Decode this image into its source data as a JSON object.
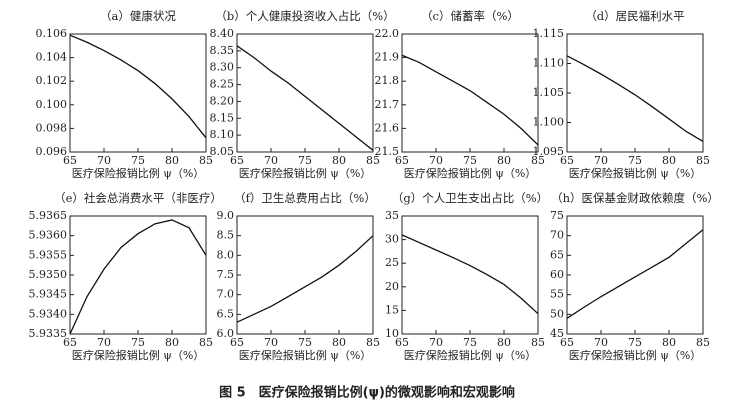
{
  "caption": "图 5　医疗保险报销比例(ψ)的微观影响和宏观影响",
  "chart_data": [
    {
      "type": "line",
      "title": "（a）健康状况",
      "x_label": "医疗保险报销比例 ψ（%）",
      "color": "#111111",
      "x": [
        65,
        67.5,
        70,
        72.5,
        75,
        77.5,
        80,
        82.5,
        85
      ],
      "values": [
        0.1059,
        0.1053,
        0.1046,
        0.1038,
        0.1029,
        0.1018,
        0.1005,
        0.099,
        0.0972
      ],
      "xlim": [
        65,
        85
      ],
      "xticks": [
        65,
        70,
        75,
        80,
        85
      ],
      "ylim": [
        0.096,
        0.106
      ],
      "yticks": [
        0.096,
        0.098,
        {
          "value": 0.1,
          "label": "0.100"
        },
        0.102,
        0.104,
        0.106
      ]
    },
    {
      "type": "line",
      "title": "（b）个人健康投资收入占比（%）",
      "x_label": "医疗保险报销比例 ψ（%）",
      "color": "#111111",
      "x": [
        65,
        67.5,
        70,
        72.5,
        75,
        77.5,
        80,
        82.5,
        85
      ],
      "values": [
        8.365,
        8.33,
        8.29,
        8.255,
        8.215,
        8.175,
        8.135,
        8.095,
        8.055
      ],
      "xlim": [
        65,
        85
      ],
      "xticks": [
        65,
        70,
        75,
        80,
        85
      ],
      "ylim": [
        8.05,
        8.4
      ],
      "yticks": [
        8.05,
        {
          "value": 8.1,
          "label": "8.10"
        },
        8.15,
        {
          "value": 8.2,
          "label": "8.20"
        },
        8.25,
        {
          "value": 8.3,
          "label": "8.30"
        },
        8.35,
        {
          "value": 8.4,
          "label": "8.40"
        }
      ]
    },
    {
      "type": "line",
      "title": "（c）储蓄率（%）",
      "x_label": "医疗保险报销比例 ψ（%）",
      "color": "#111111",
      "x": [
        65,
        67.5,
        70,
        72.5,
        75,
        77.5,
        80,
        82.5,
        85
      ],
      "values": [
        21.91,
        21.88,
        21.84,
        21.8,
        21.76,
        21.71,
        21.66,
        21.6,
        21.53
      ],
      "xlim": [
        65,
        85
      ],
      "xticks": [
        65,
        70,
        75,
        80,
        85
      ],
      "ylim": [
        21.5,
        22.0
      ],
      "yticks": [
        21.5,
        21.6,
        21.7,
        21.8,
        21.9,
        {
          "value": 22.0,
          "label": "22.0"
        }
      ]
    },
    {
      "type": "line",
      "title": "（d）居民福利水平",
      "x_label": "医疗保险报销比例 ψ（%）",
      "color": "#111111",
      "x": [
        65,
        67.5,
        70,
        72.5,
        75,
        77.5,
        80,
        82.5,
        85
      ],
      "values": [
        1.1113,
        1.1098,
        1.1082,
        1.1065,
        1.1047,
        1.1027,
        1.1006,
        1.0985,
        1.0968
      ],
      "xlim": [
        65,
        85
      ],
      "xticks": [
        65,
        70,
        75,
        80,
        85
      ],
      "ylim": [
        1.095,
        1.115
      ],
      "yticks": [
        1.095,
        {
          "value": 1.1,
          "label": "1.100"
        },
        1.105,
        {
          "value": 1.11,
          "label": "1.110"
        },
        1.115
      ]
    },
    {
      "type": "line",
      "title": "（e）社会总消费水平（非医疗）",
      "x_label": "医疗保险报销比例 ψ（%）",
      "color": "#111111",
      "x": [
        65,
        67.5,
        70,
        72.5,
        75,
        77.5,
        80,
        82.5,
        85
      ],
      "values": [
        5.9335,
        5.93445,
        5.93515,
        5.9357,
        5.93605,
        5.9363,
        5.9364,
        5.9362,
        5.9355
      ],
      "xlim": [
        65,
        85
      ],
      "xticks": [
        65,
        70,
        75,
        80,
        85
      ],
      "ylim": [
        5.9335,
        5.9365
      ],
      "yticks": [
        5.9335,
        {
          "value": 5.934,
          "label": "5.9340"
        },
        5.9345,
        {
          "value": 5.935,
          "label": "5.9350"
        },
        5.9355,
        {
          "value": 5.936,
          "label": "5.9360"
        },
        5.9365
      ]
    },
    {
      "type": "line",
      "title": "（f）卫生总费用占比（%）",
      "x_label": "医疗保险报销比例 ψ（%）",
      "color": "#111111",
      "x": [
        65,
        67.5,
        70,
        72.5,
        75,
        77.5,
        80,
        82.5,
        85
      ],
      "values": [
        6.3,
        6.5,
        6.7,
        6.95,
        7.2,
        7.45,
        7.75,
        8.1,
        8.5
      ],
      "xlim": [
        65,
        85
      ],
      "xticks": [
        65,
        70,
        75,
        80,
        85
      ],
      "ylim": [
        6.0,
        9.0
      ],
      "yticks": [
        {
          "value": 6.0,
          "label": "6.0"
        },
        6.5,
        {
          "value": 7.0,
          "label": "7.0"
        },
        7.5,
        {
          "value": 8.0,
          "label": "8.0"
        },
        8.5,
        {
          "value": 9.0,
          "label": "9.0"
        }
      ]
    },
    {
      "type": "line",
      "title": "（g）个人卫生支出占比（%）",
      "x_label": "医疗保险报销比例 ψ（%）",
      "color": "#111111",
      "x": [
        65,
        67.5,
        70,
        72.5,
        75,
        77.5,
        80,
        82.5,
        85
      ],
      "values": [
        31,
        29.4,
        27.8,
        26.2,
        24.5,
        22.6,
        20.5,
        17.6,
        14.3
      ],
      "xlim": [
        65,
        85
      ],
      "xticks": [
        65,
        70,
        75,
        80,
        85
      ],
      "ylim": [
        10,
        35
      ],
      "yticks": [
        10,
        15,
        20,
        25,
        30,
        35
      ]
    },
    {
      "type": "line",
      "title": "（h）医保基金财政依赖度（%）",
      "x_label": "医疗保险报销比例 ψ（%）",
      "color": "#111111",
      "x": [
        65,
        67.5,
        70,
        72.5,
        75,
        77.5,
        80,
        82.5,
        85
      ],
      "values": [
        49,
        51.8,
        54.5,
        57,
        59.5,
        62,
        64.5,
        68,
        71.5
      ],
      "xlim": [
        65,
        85
      ],
      "xticks": [
        65,
        70,
        75,
        80,
        85
      ],
      "ylim": [
        45,
        75
      ],
      "yticks": [
        45,
        50,
        55,
        60,
        65,
        70,
        75
      ]
    }
  ]
}
